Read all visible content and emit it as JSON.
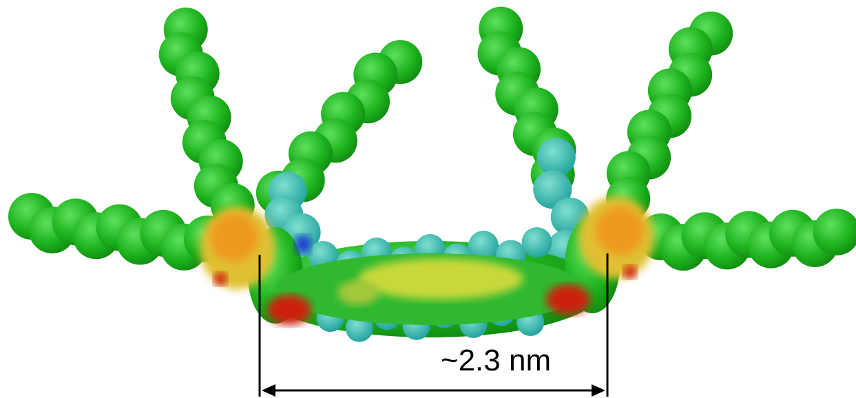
{
  "annotation": {
    "label": "~2.3 nm"
  }
}
